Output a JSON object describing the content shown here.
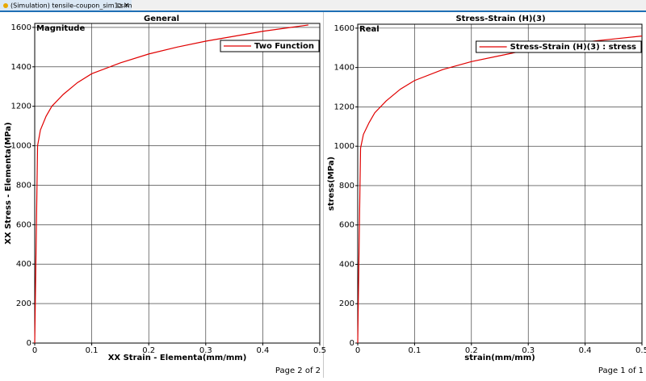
{
  "tab": {
    "title": "(Simulation) tensile-coupon_sim1.sim"
  },
  "chart_data": [
    {
      "type": "line",
      "title": "General",
      "annotation": "Magnitude",
      "page_label": "Page 2 of 2",
      "x_label": "XX Strain - Elementa(mm/mm)",
      "y_label": "XX Stress - Elementa(MPa)",
      "x": [
        0,
        0.002,
        0.004,
        0.005,
        0.01,
        0.02,
        0.03,
        0.05,
        0.075,
        0.1,
        0.15,
        0.2,
        0.25,
        0.3,
        0.35,
        0.4,
        0.45,
        0.48
      ],
      "series": [
        {
          "name": "Two Function",
          "color": "#e00000",
          "values": [
            0,
            400,
            800,
            1000,
            1080,
            1150,
            1200,
            1260,
            1320,
            1365,
            1420,
            1465,
            1500,
            1530,
            1555,
            1580,
            1600,
            1612
          ]
        }
      ],
      "xlim": [
        0,
        0.5
      ],
      "xticks": [
        0,
        0.1,
        0.2,
        0.3,
        0.4,
        0.5
      ],
      "ylim": [
        0,
        1620
      ],
      "yticks": [
        0,
        200,
        400,
        600,
        800,
        1000,
        1200,
        1400,
        1600
      ],
      "grid": true,
      "legend": "upper right"
    },
    {
      "type": "line",
      "title": "Stress-Strain (H)(3)",
      "annotation": "Real",
      "page_label": "Page 1 of 1",
      "x_label": "strain(mm/mm)",
      "y_label": "stress(MPa)",
      "x": [
        0,
        0.002,
        0.004,
        0.005,
        0.01,
        0.02,
        0.03,
        0.05,
        0.075,
        0.1,
        0.15,
        0.2,
        0.25,
        0.3,
        0.35,
        0.4,
        0.45,
        0.5
      ],
      "series": [
        {
          "name": "Stress-Strain (H)(3) : stress",
          "color": "#e00000",
          "values": [
            0,
            400,
            800,
            990,
            1060,
            1120,
            1170,
            1230,
            1290,
            1334,
            1390,
            1430,
            1460,
            1490,
            1510,
            1530,
            1545,
            1560
          ]
        }
      ],
      "xlim": [
        0,
        0.5
      ],
      "xticks": [
        0,
        0.1,
        0.2,
        0.3,
        0.4,
        0.5
      ],
      "ylim": [
        0,
        1620
      ],
      "yticks": [
        0,
        200,
        400,
        600,
        800,
        1000,
        1200,
        1400,
        1600
      ],
      "grid": true,
      "legend": "upper right"
    }
  ]
}
